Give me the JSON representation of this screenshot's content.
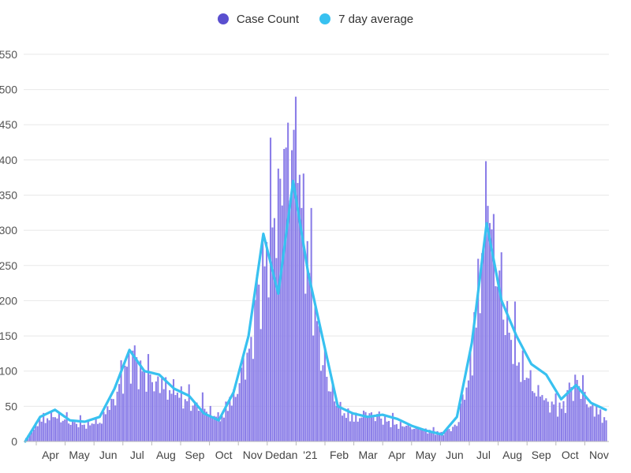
{
  "chart_data": {
    "type": "bar",
    "title": "",
    "xlabel": "",
    "ylabel": "",
    "ylim": [
      0,
      560
    ],
    "y_ticks": [
      0,
      50,
      100,
      150,
      200,
      250,
      300,
      350,
      400,
      450,
      500,
      550
    ],
    "y_tick_labels": [
      "0",
      "50",
      "100",
      "150",
      "200",
      "250",
      "300",
      "350",
      "400",
      "450",
      "500",
      "550"
    ],
    "x_ticks": [
      "Apr",
      "May",
      "Jun",
      "Jul",
      "Aug",
      "Sep",
      "Oct",
      "Nov",
      "Dec",
      "Jan '21",
      "Feb",
      "Mar",
      "Apr",
      "May",
      "Jun",
      "Jul",
      "Aug",
      "Sep",
      "Oct",
      "Nov"
    ],
    "x_tick_labels_shown": [
      "Apr",
      "May",
      "Jun",
      "Jul",
      "Aug",
      "Sep",
      "Oct",
      "Nov",
      "Dedan",
      "'21",
      "Feb",
      "Mar",
      "Apr",
      "May",
      "Jun",
      "Jul",
      "Aug",
      "Sep",
      "Oct",
      "Nov"
    ],
    "legend": [
      {
        "name": "Case Count",
        "color": "#5a4fcf"
      },
      {
        "name": "7 day average",
        "color": "#38c1f0"
      }
    ],
    "series": [
      {
        "name": "Case Count",
        "kind": "bars",
        "description": "daily counts, approximated from weekly peaks",
        "monthly_anchor_values": [
          5,
          40,
          45,
          35,
          30,
          35,
          80,
          150,
          120,
          100,
          90,
          70,
          60,
          40,
          80,
          160,
          320,
          440,
          560,
          320,
          130,
          60,
          40,
          50,
          40,
          30,
          25,
          20,
          15,
          30,
          150,
          440,
          250,
          150,
          100,
          70,
          60,
          110,
          60,
          40
        ]
      },
      {
        "name": "7 day average",
        "kind": "line",
        "values": [
          0,
          35,
          45,
          30,
          28,
          35,
          75,
          130,
          100,
          95,
          75,
          65,
          40,
          30,
          70,
          150,
          295,
          210,
          370,
          240,
          145,
          50,
          40,
          35,
          38,
          32,
          22,
          15,
          10,
          35,
          140,
          310,
          200,
          150,
          110,
          95,
          60,
          80,
          55,
          45
        ]
      }
    ]
  }
}
